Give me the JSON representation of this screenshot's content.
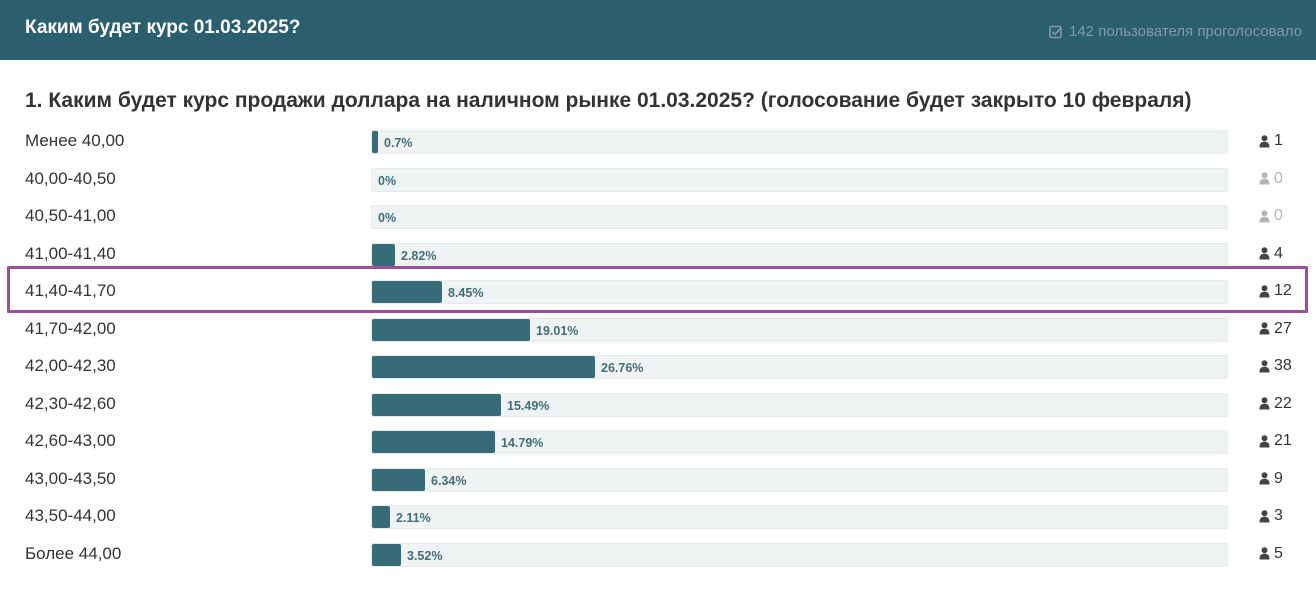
{
  "header": {
    "title": "Каким будет курс 01.03.2025?",
    "votes_text": "142 пользователя проголосовало",
    "votes_icon": "check-square-icon"
  },
  "question": "1. Каким будет курс продажи доллара на наличном рынке 01.03.2025? (голосование будет закрыто 10 февраля)",
  "colors": {
    "header_bg": "#2c5f6e",
    "bar_fill": "#386b78",
    "bar_track": "#f0f3f4",
    "highlight": "#9b4d9e"
  },
  "options": [
    {
      "label": "Менее 40,00",
      "percent_text": "0.7%",
      "percent": 0.7,
      "count": "1"
    },
    {
      "label": "40,00-40,50",
      "percent_text": "0%",
      "percent": 0,
      "count": "0"
    },
    {
      "label": "40,50-41,00",
      "percent_text": "0%",
      "percent": 0,
      "count": "0"
    },
    {
      "label": "41,00-41,40",
      "percent_text": "2.82%",
      "percent": 2.82,
      "count": "4"
    },
    {
      "label": "41,40-41,70",
      "percent_text": "8.45%",
      "percent": 8.45,
      "count": "12",
      "highlighted": true
    },
    {
      "label": "41,70-42,00",
      "percent_text": "19.01%",
      "percent": 19.01,
      "count": "27"
    },
    {
      "label": "42,00-42,30",
      "percent_text": "26.76%",
      "percent": 26.76,
      "count": "38"
    },
    {
      "label": "42,30-42,60",
      "percent_text": "15.49%",
      "percent": 15.49,
      "count": "22"
    },
    {
      "label": "42,60-43,00",
      "percent_text": "14.79%",
      "percent": 14.79,
      "count": "21"
    },
    {
      "label": "43,00-43,50",
      "percent_text": "6.34%",
      "percent": 6.34,
      "count": "9"
    },
    {
      "label": "43,50-44,00",
      "percent_text": "2.11%",
      "percent": 2.11,
      "count": "3"
    },
    {
      "label": "Более 44,00",
      "percent_text": "3.52%",
      "percent": 3.52,
      "count": "5"
    }
  ]
}
